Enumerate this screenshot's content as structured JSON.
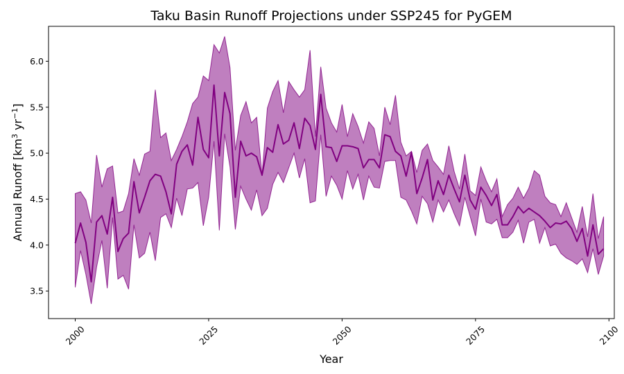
{
  "chart_data": {
    "type": "line",
    "title": "Taku Basin Runoff Projections under SSP245 for PyGEM",
    "xlabel": "Year",
    "ylabel": {
      "prefix": "Annual Runoff [km",
      "sup1": "3",
      "mid": " yr",
      "sup2": "−1",
      "suffix": "]"
    },
    "xlim": [
      1995,
      2101
    ],
    "ylim": [
      3.2,
      6.38
    ],
    "xticks": [
      2000,
      2025,
      2050,
      2075,
      2100
    ],
    "yticks": [
      3.5,
      4.0,
      4.5,
      5.0,
      5.5,
      6.0
    ],
    "ytick_labels": [
      "3.5",
      "4.0",
      "4.5",
      "5.0",
      "5.5",
      "6.0"
    ],
    "grid": false,
    "colors": {
      "line": "#800080",
      "band": "#800080",
      "band_opacity": 0.5
    },
    "series": [
      {
        "x": [
          2000,
          2001,
          2002,
          2003,
          2004,
          2005,
          2006,
          2007,
          2008,
          2009,
          2010,
          2011,
          2012,
          2013,
          2014,
          2015,
          2016,
          2017,
          2018,
          2019,
          2020,
          2021,
          2022,
          2023,
          2024,
          2025,
          2026,
          2027,
          2028,
          2029,
          2030,
          2031,
          2032,
          2033,
          2034,
          2035,
          2036,
          2037,
          2038,
          2039,
          2040,
          2041,
          2042,
          2043,
          2044,
          2045,
          2046,
          2047,
          2048,
          2049,
          2050,
          2051,
          2052,
          2053,
          2054,
          2055,
          2056,
          2057,
          2058,
          2059,
          2060,
          2061,
          2062,
          2063,
          2064,
          2065,
          2066,
          2067,
          2068,
          2069,
          2070,
          2071,
          2072,
          2073,
          2074,
          2075,
          2076,
          2077,
          2078,
          2079,
          2080,
          2081,
          2082,
          2083,
          2084,
          2085,
          2086,
          2087,
          2088,
          2089,
          2090,
          2091,
          2092,
          2093,
          2094,
          2095,
          2096,
          2097,
          2098,
          2099
        ],
        "mean": [
          4.02,
          4.24,
          4.03,
          3.6,
          4.25,
          4.32,
          4.12,
          4.52,
          3.93,
          4.07,
          4.13,
          4.69,
          4.35,
          4.52,
          4.7,
          4.77,
          4.75,
          4.58,
          4.34,
          4.88,
          5.02,
          5.09,
          4.87,
          5.39,
          5.04,
          4.95,
          5.74,
          4.97,
          5.66,
          5.43,
          4.52,
          5.13,
          4.97,
          5.0,
          4.96,
          4.76,
          5.06,
          5.01,
          5.31,
          5.1,
          5.14,
          5.33,
          5.05,
          5.38,
          5.3,
          5.04,
          5.64,
          5.07,
          5.06,
          4.91,
          5.08,
          5.08,
          5.07,
          5.05,
          4.84,
          4.93,
          4.93,
          4.84,
          5.2,
          5.18,
          5.02,
          4.97,
          4.75,
          5.01,
          4.56,
          4.73,
          4.93,
          4.49,
          4.7,
          4.55,
          4.76,
          4.61,
          4.47,
          4.76,
          4.49,
          4.39,
          4.63,
          4.54,
          4.43,
          4.55,
          4.22,
          4.22,
          4.31,
          4.42,
          4.35,
          4.4,
          4.36,
          4.32,
          4.26,
          4.19,
          4.24,
          4.23,
          4.26,
          4.18,
          4.04,
          4.18,
          3.88,
          4.22,
          3.9,
          3.96
        ],
        "upper": [
          4.56,
          4.58,
          4.49,
          4.24,
          4.98,
          4.63,
          4.83,
          4.86,
          4.35,
          4.37,
          4.56,
          4.94,
          4.76,
          4.99,
          5.02,
          5.69,
          5.17,
          5.22,
          4.92,
          5.04,
          5.18,
          5.34,
          5.54,
          5.61,
          5.84,
          5.79,
          6.18,
          6.09,
          6.27,
          5.93,
          5.03,
          5.41,
          5.56,
          5.33,
          5.39,
          4.76,
          5.49,
          5.67,
          5.79,
          5.44,
          5.78,
          5.69,
          5.61,
          5.69,
          6.12,
          5.18,
          5.94,
          5.49,
          5.33,
          5.23,
          5.53,
          5.18,
          5.43,
          5.29,
          5.11,
          5.34,
          5.27,
          4.97,
          5.5,
          5.31,
          5.63,
          5.12,
          4.97,
          5.02,
          4.79,
          5.03,
          5.1,
          4.92,
          4.85,
          4.77,
          5.08,
          4.8,
          4.61,
          4.99,
          4.59,
          4.54,
          4.85,
          4.7,
          4.58,
          4.72,
          4.31,
          4.44,
          4.51,
          4.63,
          4.51,
          4.62,
          4.81,
          4.76,
          4.53,
          4.46,
          4.44,
          4.31,
          4.46,
          4.3,
          4.14,
          4.42,
          4.09,
          4.56,
          4.07,
          4.31
        ],
        "lower": [
          3.54,
          3.94,
          3.68,
          3.36,
          3.76,
          4.05,
          3.53,
          4.3,
          3.63,
          3.67,
          3.52,
          4.22,
          3.86,
          3.91,
          4.14,
          3.83,
          4.3,
          4.34,
          4.19,
          4.51,
          4.32,
          4.61,
          4.62,
          4.68,
          4.21,
          4.52,
          5.13,
          4.16,
          5.21,
          4.85,
          4.17,
          4.64,
          4.5,
          4.38,
          4.6,
          4.32,
          4.4,
          4.66,
          4.79,
          4.68,
          4.84,
          5.0,
          4.73,
          4.94,
          4.46,
          4.48,
          5.2,
          4.53,
          4.75,
          4.65,
          4.5,
          4.81,
          4.61,
          4.77,
          4.49,
          4.75,
          4.63,
          4.62,
          4.91,
          4.92,
          4.92,
          4.52,
          4.49,
          4.37,
          4.23,
          4.53,
          4.45,
          4.25,
          4.49,
          4.36,
          4.49,
          4.34,
          4.21,
          4.52,
          4.31,
          4.1,
          4.5,
          4.25,
          4.23,
          4.28,
          4.08,
          4.08,
          4.14,
          4.27,
          4.02,
          4.25,
          4.28,
          4.02,
          4.19,
          3.99,
          4.01,
          3.91,
          3.86,
          3.83,
          3.79,
          3.85,
          3.7,
          3.96,
          3.68,
          3.88
        ]
      }
    ]
  }
}
